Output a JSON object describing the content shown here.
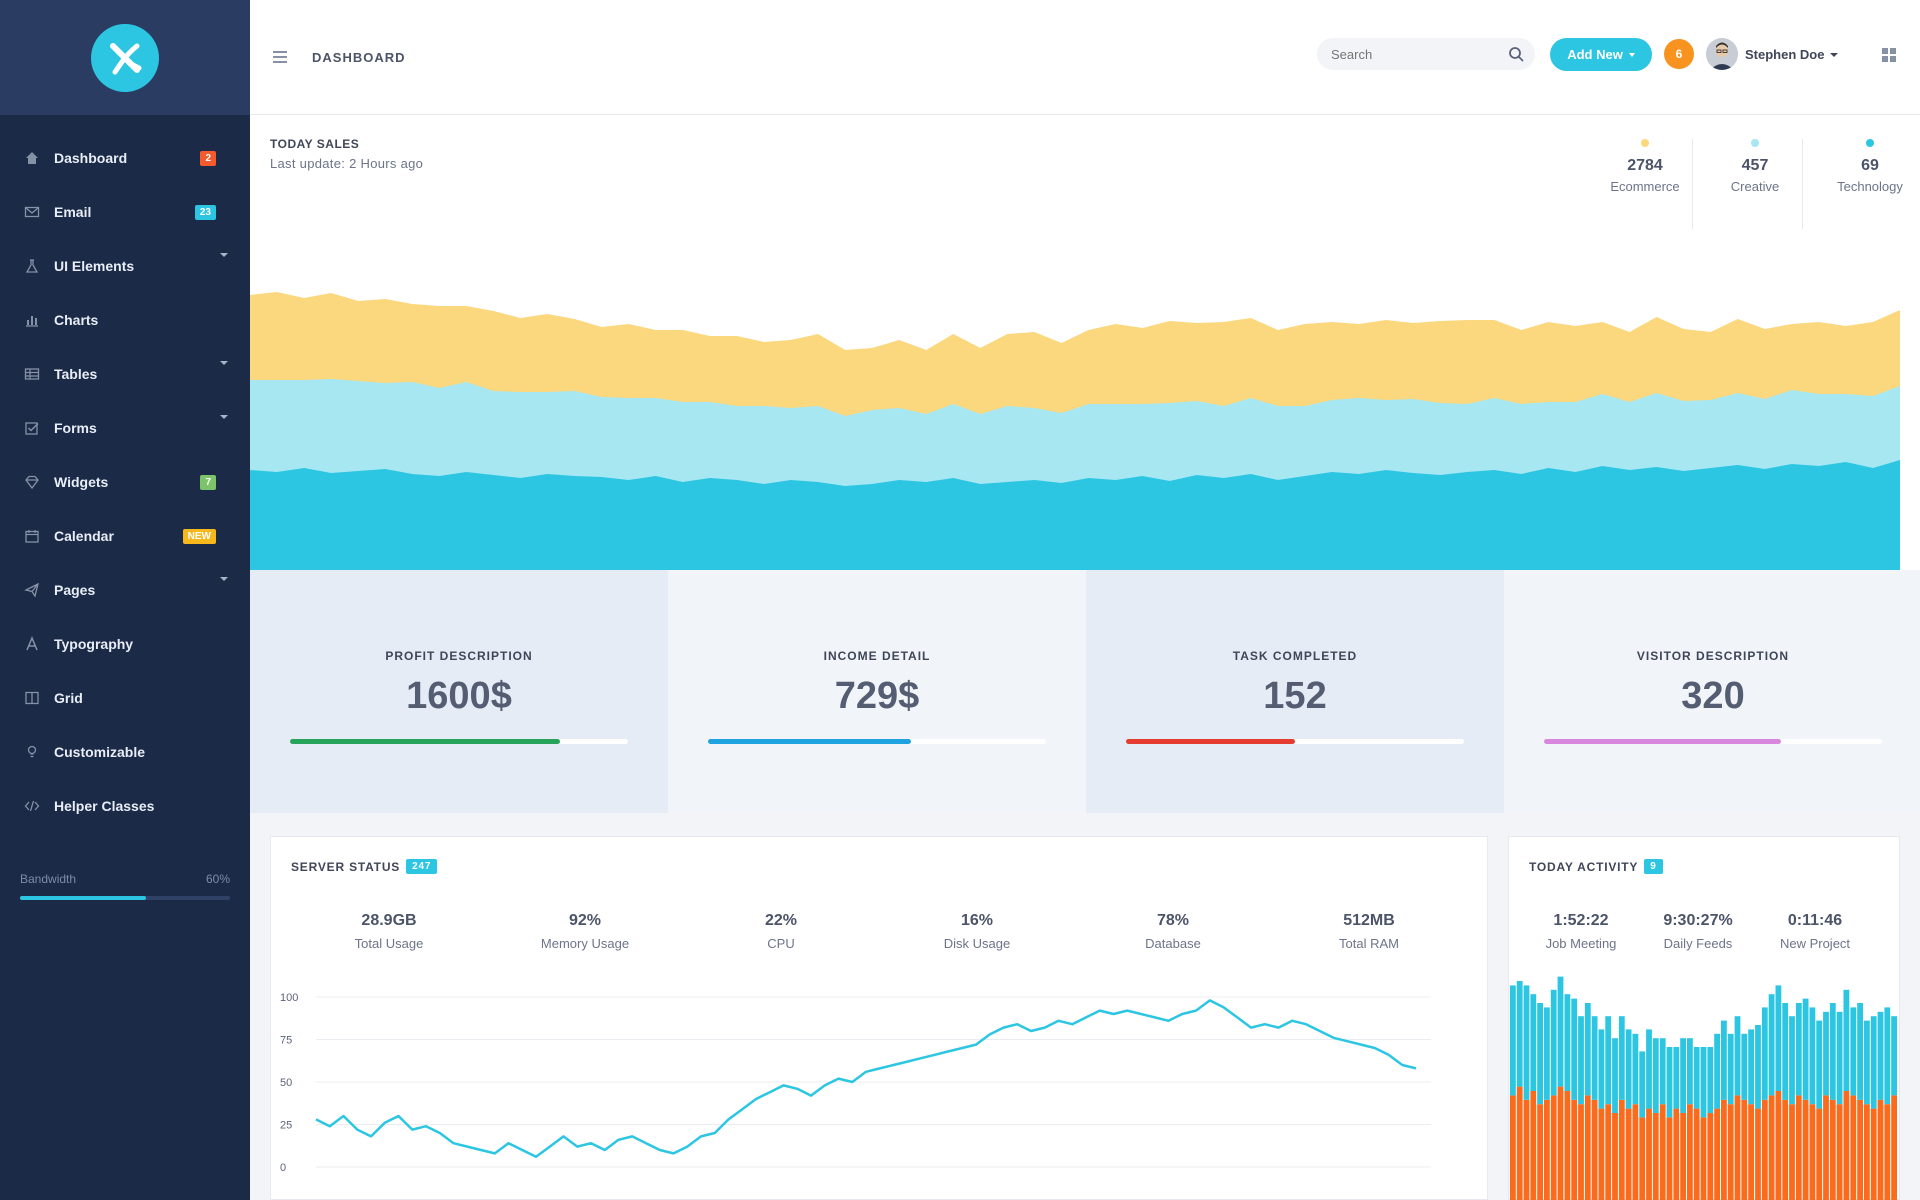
{
  "sidebar": {
    "items": [
      {
        "label": "Dashboard",
        "icon": "home-icon",
        "badge": "2",
        "badge_color": "red",
        "has_caret": false
      },
      {
        "label": "Email",
        "icon": "envelope-icon",
        "badge": "23",
        "badge_color": "cyan",
        "has_caret": false
      },
      {
        "label": "UI Elements",
        "icon": "flask-icon",
        "badge": "",
        "badge_color": "",
        "has_caret": true
      },
      {
        "label": "Charts",
        "icon": "bar-chart-icon",
        "badge": "",
        "badge_color": "",
        "has_caret": false
      },
      {
        "label": "Tables",
        "icon": "table-icon",
        "badge": "",
        "badge_color": "",
        "has_caret": true
      },
      {
        "label": "Forms",
        "icon": "checkbox-icon",
        "badge": "",
        "badge_color": "",
        "has_caret": true
      },
      {
        "label": "Widgets",
        "icon": "diamond-icon",
        "badge": "7",
        "badge_color": "green",
        "has_caret": false
      },
      {
        "label": "Calendar",
        "icon": "calendar-icon",
        "badge": "NEW",
        "badge_color": "yellow",
        "has_caret": false
      },
      {
        "label": "Pages",
        "icon": "paper-plane-icon",
        "badge": "",
        "badge_color": "",
        "has_caret": true
      },
      {
        "label": "Typography",
        "icon": "font-icon",
        "badge": "",
        "badge_color": "",
        "has_caret": false
      },
      {
        "label": "Grid",
        "icon": "columns-icon",
        "badge": "",
        "badge_color": "",
        "has_caret": false
      },
      {
        "label": "Customizable",
        "icon": "lightbulb-icon",
        "badge": "",
        "badge_color": "",
        "has_caret": false
      },
      {
        "label": "Helper Classes",
        "icon": "code-icon",
        "badge": "",
        "badge_color": "",
        "has_caret": false
      }
    ],
    "bandwidth": {
      "label": "Bandwidth",
      "value_text": "60%",
      "fraction": 0.6
    }
  },
  "header": {
    "title": "DASHBOARD",
    "search_placeholder": "Search",
    "add_new": "Add New",
    "notifications": "6",
    "user_name": "Stephen Doe"
  },
  "sales": {
    "title": "TODAY SALES",
    "subtitle": "Last update: 2 Hours ago",
    "legend": [
      {
        "value": "2784",
        "label": "Ecommerce",
        "color": "#fbd77e"
      },
      {
        "value": "457",
        "label": "Creative",
        "color": "#a6e7f2"
      },
      {
        "value": "69",
        "label": "Technology",
        "color": "#2cc6e2"
      }
    ]
  },
  "kpis": [
    {
      "title": "PROFIT DESCRIPTION",
      "value": "1600$",
      "progress": 0.8,
      "color": "#27a35a",
      "bg": "#e5ecf6"
    },
    {
      "title": "INCOME DETAIL",
      "value": "729$",
      "progress": 0.6,
      "color": "#1ea2e0",
      "bg": "#f1f4f8"
    },
    {
      "title": "TASK COMPLETED",
      "value": "152",
      "progress": 0.5,
      "color": "#e43d30",
      "bg": "#e5ecf6"
    },
    {
      "title": "VISITOR DESCRIPTION",
      "value": "320",
      "progress": 0.7,
      "color": "#d787de",
      "bg": "#f1f4f8"
    }
  ],
  "server": {
    "title": "SERVER STATUS",
    "badge": "247",
    "stats": [
      {
        "value": "28.9GB",
        "label": "Total Usage"
      },
      {
        "value": "92%",
        "label": "Memory Usage"
      },
      {
        "value": "22%",
        "label": "CPU"
      },
      {
        "value": "16%",
        "label": "Disk Usage"
      },
      {
        "value": "78%",
        "label": "Database"
      },
      {
        "value": "512MB",
        "label": "Total RAM"
      }
    ]
  },
  "activity": {
    "title": "TODAY ACTIVITY",
    "badge": "9",
    "stats": [
      {
        "value": "1:52:22",
        "label": "Job Meeting"
      },
      {
        "value": "9:30:27%",
        "label": "Daily Feeds"
      },
      {
        "value": "0:11:46",
        "label": "New Project"
      }
    ]
  },
  "chart_data": [
    {
      "type": "area",
      "stacked": true,
      "series": [
        {
          "name": "Technology",
          "color": "#2cc6e2",
          "values": [
            100,
            98,
            102,
            97,
            99,
            101,
            96,
            94,
            98,
            95,
            92,
            96,
            94,
            93,
            90,
            94,
            88,
            92,
            90,
            86,
            90,
            88,
            84,
            86,
            90,
            88,
            92,
            86,
            88,
            90,
            87,
            92,
            90,
            94,
            89,
            95,
            92,
            96,
            90,
            94,
            98,
            96,
            100,
            97,
            95,
            98,
            100,
            96,
            102,
            98,
            104,
            100,
            103,
            99,
            102,
            105,
            101,
            106,
            104,
            108,
            102,
            110
          ]
        },
        {
          "name": "Creative",
          "color": "#a6e7f2",
          "values": [
            90,
            92,
            88,
            94,
            90,
            86,
            92,
            88,
            90,
            84,
            86,
            82,
            85,
            80,
            82,
            78,
            80,
            76,
            74,
            78,
            72,
            76,
            70,
            74,
            72,
            68,
            74,
            70,
            76,
            72,
            70,
            74,
            76,
            72,
            78,
            74,
            72,
            76,
            74,
            70,
            72,
            76,
            70,
            74,
            72,
            68,
            72,
            70,
            66,
            70,
            72,
            68,
            74,
            70,
            68,
            72,
            70,
            74,
            72,
            68,
            72,
            74
          ]
        },
        {
          "name": "Ecommerce",
          "color": "#fbd77e",
          "values": [
            85,
            88,
            82,
            86,
            80,
            84,
            78,
            82,
            76,
            80,
            74,
            78,
            72,
            70,
            74,
            68,
            72,
            66,
            70,
            64,
            68,
            72,
            66,
            62,
            68,
            64,
            70,
            66,
            72,
            76,
            70,
            74,
            80,
            76,
            82,
            78,
            84,
            80,
            76,
            82,
            78,
            74,
            80,
            76,
            82,
            84,
            78,
            74,
            80,
            76,
            72,
            70,
            76,
            72,
            68,
            74,
            70,
            66,
            72,
            68,
            74,
            76
          ]
        }
      ]
    },
    {
      "type": "line",
      "yticks": [
        0,
        25,
        50,
        75,
        100
      ],
      "ylim": [
        0,
        100
      ],
      "series": [
        {
          "color": "#2cc6e2",
          "values": [
            28,
            24,
            30,
            22,
            18,
            26,
            30,
            22,
            24,
            20,
            14,
            12,
            10,
            8,
            14,
            10,
            6,
            12,
            18,
            12,
            14,
            10,
            16,
            18,
            14,
            10,
            8,
            12,
            18,
            20,
            28,
            34,
            40,
            44,
            48,
            46,
            42,
            48,
            52,
            50,
            56,
            58,
            60,
            62,
            64,
            66,
            68,
            70,
            72,
            78,
            82,
            84,
            80,
            82,
            86,
            84,
            88,
            92,
            90,
            92,
            90,
            88,
            86,
            90,
            92,
            98,
            94,
            88,
            82,
            84,
            82,
            86,
            84,
            80,
            76,
            74,
            72,
            70,
            66,
            60,
            58
          ]
        }
      ]
    },
    {
      "type": "bar",
      "stacked": true,
      "series": [
        {
          "color": "#fb6b1d",
          "values": [
            48,
            52,
            46,
            50,
            44,
            46,
            48,
            52,
            50,
            46,
            44,
            48,
            46,
            42,
            44,
            40,
            46,
            42,
            44,
            38,
            42,
            40,
            44,
            38,
            42,
            40,
            44,
            42,
            38,
            40,
            42,
            46,
            44,
            48,
            46,
            44,
            42,
            46,
            48,
            50,
            46,
            44,
            48,
            46,
            44,
            42,
            48,
            46,
            44,
            50,
            48,
            46,
            44,
            42,
            46,
            44,
            48
          ]
        },
        {
          "color": "#2cc6e2",
          "values": [
            50,
            48,
            52,
            44,
            46,
            42,
            48,
            50,
            44,
            46,
            40,
            42,
            38,
            36,
            40,
            34,
            38,
            36,
            32,
            30,
            36,
            34,
            30,
            32,
            28,
            34,
            30,
            28,
            32,
            30,
            34,
            36,
            32,
            36,
            30,
            34,
            38,
            42,
            46,
            48,
            44,
            40,
            42,
            46,
            44,
            40,
            38,
            44,
            42,
            46,
            40,
            44,
            38,
            42,
            40,
            44,
            36
          ]
        }
      ]
    }
  ]
}
